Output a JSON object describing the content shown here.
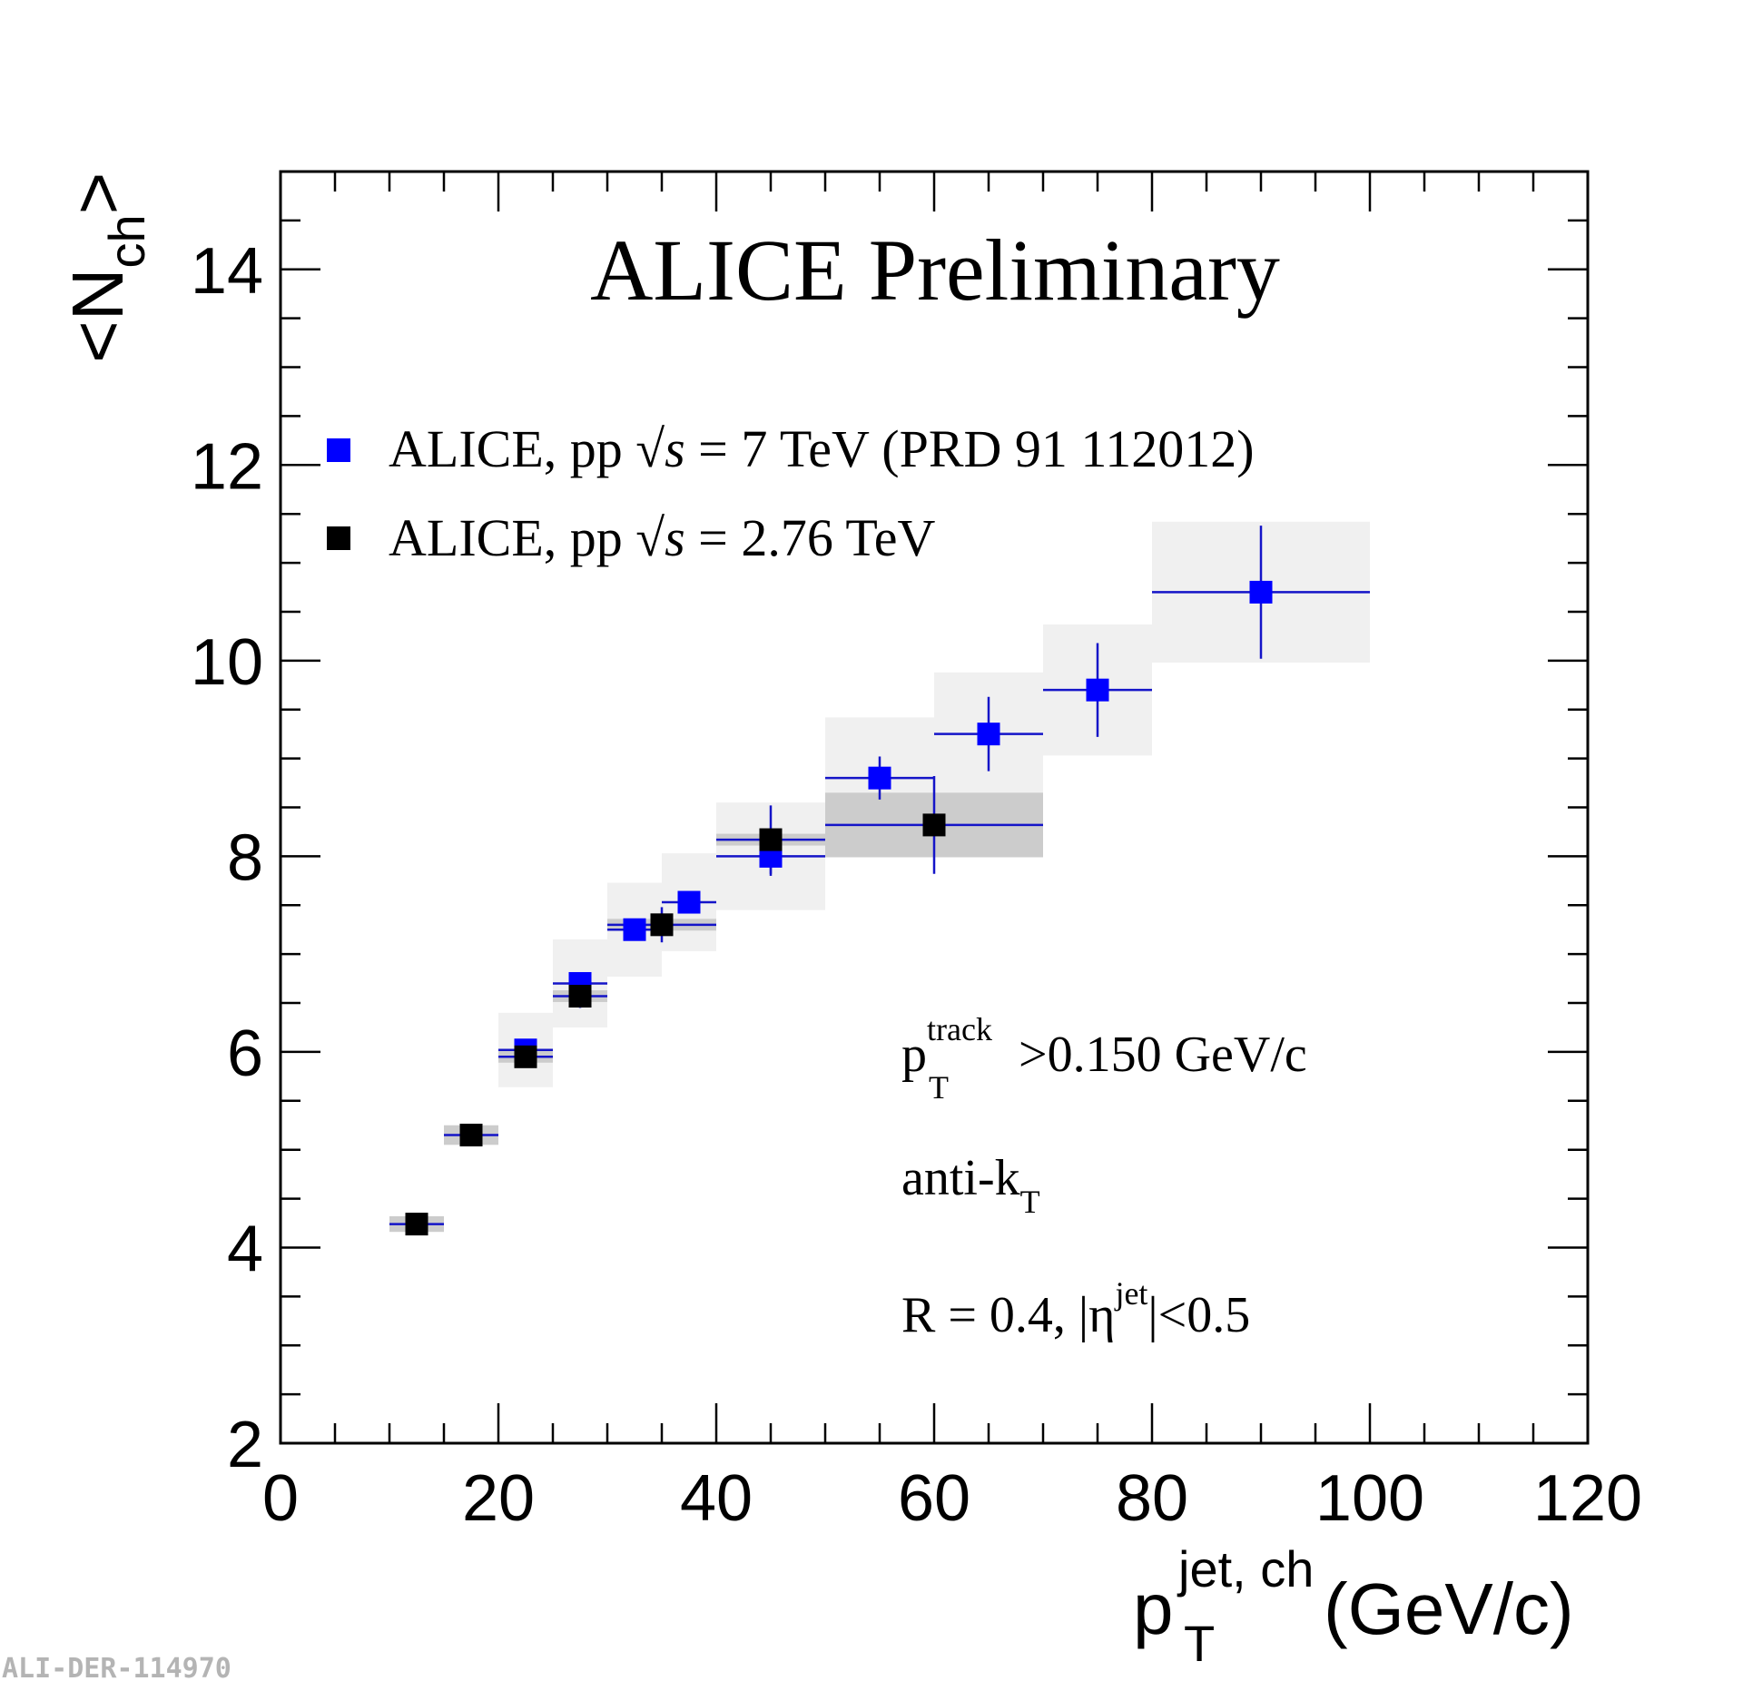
{
  "chart_data": {
    "type": "scatter",
    "title": "ALICE Preliminary",
    "xlabel": {
      "main": "p",
      "sub": "T",
      "sup": "jet, ch",
      "unit": "(GeV/c)"
    },
    "ylabel": {
      "main": "<N",
      "sub": "ch",
      "close": ">"
    },
    "xlim": [
      0,
      120
    ],
    "ylim": [
      2,
      15
    ],
    "xticks": [
      0,
      20,
      40,
      60,
      80,
      100,
      120
    ],
    "xtick_labels": [
      "0",
      "20",
      "40",
      "60",
      "80",
      "100",
      "120"
    ],
    "yticks": [
      2,
      4,
      6,
      8,
      10,
      12,
      14
    ],
    "ytick_labels": [
      "2",
      "4",
      "6",
      "8",
      "10",
      "12",
      "14"
    ],
    "legend_position": "top-left",
    "series": [
      {
        "name": "ALICE, pp √s = 7 TeV (PRD 91 112012)",
        "legend": {
          "prefix": "ALICE,  pp  ",
          "sqrt": "√",
          "s": "s",
          "suffix": " = 7 TeV (PRD 91 112012)"
        },
        "color": "#0000ff",
        "syst_color": "#f0f0f0",
        "points": [
          {
            "x": 22.5,
            "y": 6.02,
            "xlo": 20,
            "xhi": 25,
            "stat": 0.05,
            "syst": 0.38
          },
          {
            "x": 27.5,
            "y": 6.7,
            "xlo": 25,
            "xhi": 30,
            "stat": 0.05,
            "syst": 0.45
          },
          {
            "x": 32.5,
            "y": 7.25,
            "xlo": 30,
            "xhi": 35,
            "stat": 0.05,
            "syst": 0.48
          },
          {
            "x": 37.5,
            "y": 7.53,
            "xlo": 35,
            "xhi": 40,
            "stat": 0.05,
            "syst": 0.5
          },
          {
            "x": 45.0,
            "y": 8.0,
            "xlo": 40,
            "xhi": 50,
            "stat": 0.2,
            "syst": 0.55
          },
          {
            "x": 55.0,
            "y": 8.8,
            "xlo": 50,
            "xhi": 60,
            "stat": 0.22,
            "syst": 0.62
          },
          {
            "x": 65.0,
            "y": 9.25,
            "xlo": 60,
            "xhi": 70,
            "stat": 0.38,
            "syst": 0.63
          },
          {
            "x": 75.0,
            "y": 9.7,
            "xlo": 70,
            "xhi": 80,
            "stat": 0.48,
            "syst": 0.67
          },
          {
            "x": 90.0,
            "y": 10.7,
            "xlo": 80,
            "xhi": 100,
            "stat": 0.68,
            "syst": 0.72
          }
        ]
      },
      {
        "name": "ALICE, pp √s = 2.76 TeV",
        "legend": {
          "prefix": "ALICE,  pp  ",
          "sqrt": "√",
          "s": "s",
          "suffix": " = 2.76 TeV"
        },
        "color": "#000000",
        "syst_color": "#cccccc",
        "points": [
          {
            "x": 12.5,
            "y": 4.24,
            "xlo": 10,
            "xhi": 15,
            "stat": 0.04,
            "syst": 0.08
          },
          {
            "x": 17.5,
            "y": 5.15,
            "xlo": 15,
            "xhi": 20,
            "stat": 0.04,
            "syst": 0.1
          },
          {
            "x": 22.5,
            "y": 5.95,
            "xlo": 20,
            "xhi": 25,
            "stat": 0.05,
            "syst": 0.06
          },
          {
            "x": 27.5,
            "y": 6.57,
            "xlo": 25,
            "xhi": 30,
            "stat": 0.12,
            "syst": 0.06
          },
          {
            "x": 35.0,
            "y": 7.3,
            "xlo": 30,
            "xhi": 40,
            "stat": 0.18,
            "syst": 0.06
          },
          {
            "x": 45.0,
            "y": 8.17,
            "xlo": 40,
            "xhi": 50,
            "stat": 0.35,
            "syst": 0.06
          },
          {
            "x": 60.0,
            "y": 8.32,
            "xlo": 50,
            "xhi": 70,
            "stat": 0.5,
            "syst": 0.33
          }
        ]
      }
    ],
    "annotations": {
      "cut": {
        "p": "p",
        "sub": "T",
        "sup": "track",
        "rest": ">0.150 GeV/c"
      },
      "algo": {
        "main": "anti-k",
        "sub": "T"
      },
      "radius": {
        "pre": "R = 0.4, |η",
        "sup": "jet",
        "post": "|<0.5"
      }
    },
    "footer_id": "ALI-DER-114970"
  }
}
